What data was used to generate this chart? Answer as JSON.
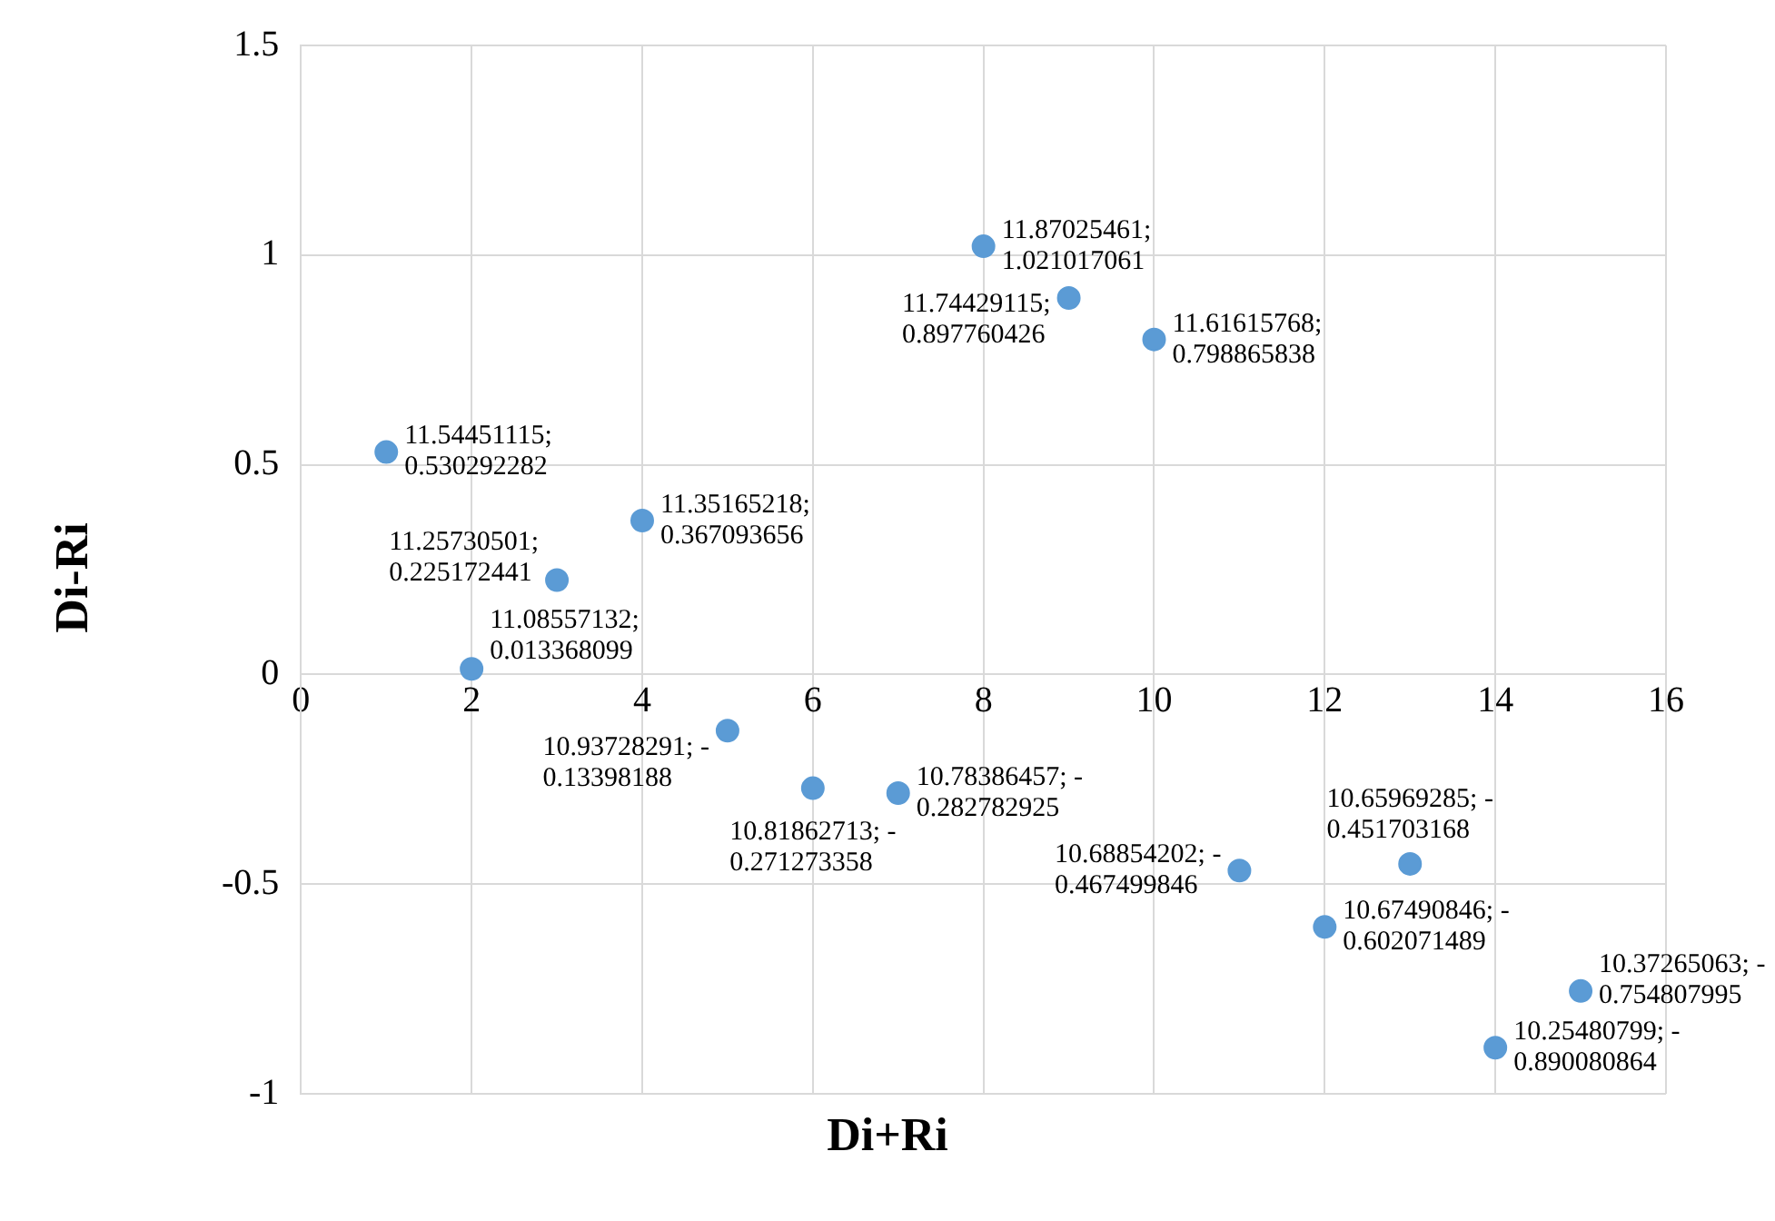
{
  "chart_data": {
    "type": "scatter",
    "xlabel": "Di+Ri",
    "ylabel": "Di-Ri",
    "x": [
      1,
      2,
      3,
      4,
      5,
      6,
      7,
      8,
      9,
      10,
      11,
      12,
      13,
      14,
      15
    ],
    "series": [
      {
        "color": "#5b9bd5",
        "values": [
          0.530292282,
          0.013368099,
          0.225172441,
          0.367093656,
          -0.13398188,
          -0.271273358,
          -0.282782925,
          1.021017061,
          0.897760426,
          0.798865838,
          -0.467499846,
          -0.602071489,
          -0.451703168,
          -0.890080864,
          -0.754807995
        ],
        "value_labels": [
          "11.54451115; 0.530292282",
          "11.08557132; 0.013368099",
          "11.25730501; 0.225172441",
          "11.35165218; 0.367093656",
          "10.93728291; -0.13398188",
          "10.81862713; -0.271273358",
          "10.78386457; -0.282782925",
          "11.87025461; 1.021017061",
          "11.74429115; 0.897760426",
          "11.61615768; 0.798865838",
          "10.68854202; -0.467499846",
          "10.67490846; -0.602071489",
          "10.65969285; -0.451703168",
          "10.25480799; -0.890080864",
          "10.37265063; -0.754807995"
        ]
      }
    ],
    "xlim": [
      0,
      16
    ],
    "xticks": [
      0,
      2,
      4,
      6,
      8,
      10,
      12,
      14,
      16
    ],
    "ylim": [
      -1,
      1.5
    ],
    "yticks": [
      -1,
      -0.5,
      0,
      0.5,
      1,
      1.5
    ],
    "grid": true,
    "legend": false,
    "marker": "circle"
  }
}
